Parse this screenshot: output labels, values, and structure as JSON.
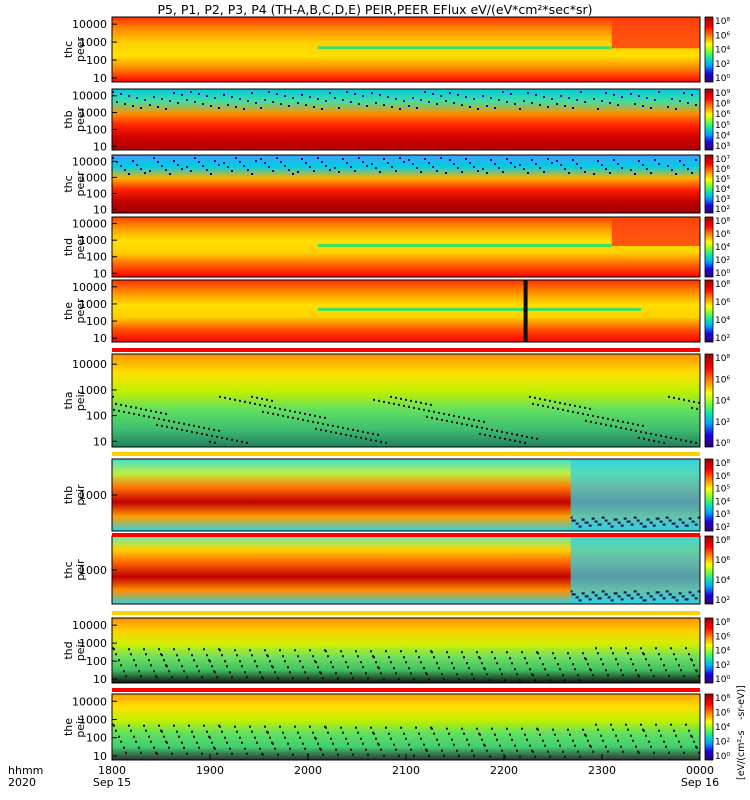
{
  "title": "P5, P1, P2, P3, P4 (TH-A,B,C,D,E) PEIR,PEER EFlux eV/(eV*cm²*sec*sr)",
  "chart_data": {
    "type": "heatmap",
    "x_time_labels": [
      "1800",
      "1900",
      "2000",
      "2100",
      "2200",
      "2300",
      "0000"
    ],
    "x_date_start": "Sep 15",
    "x_date_end": "Sep 16",
    "x_axis_row_label": "hhmm",
    "x_axis_year_label": "2020",
    "colorbar_unit_left": "[eV/(cm²-s",
    "colorbar_unit_right": "-sr-eV)]",
    "panels": [
      {
        "ylabel": "thc peer",
        "yticks": [
          "10000",
          "1000",
          "100",
          "10"
        ],
        "yscale": "log",
        "colorbar_ticks": [
          "10⁸",
          "10⁶",
          "10⁴",
          "10²",
          "10⁰"
        ]
      },
      {
        "ylabel": "thb peer",
        "yticks": [
          "10000",
          "1000",
          "100",
          "10"
        ],
        "yscale": "log",
        "colorbar_ticks": [
          "10⁹",
          "10⁸",
          "10⁶",
          "10⁵",
          "10⁴",
          "10³"
        ]
      },
      {
        "ylabel": "thc peer",
        "yticks": [
          "10000",
          "1000",
          "100",
          "10"
        ],
        "yscale": "log",
        "colorbar_ticks": [
          "10⁷",
          "10⁶",
          "10⁵",
          "10⁴",
          "10³",
          "10²"
        ]
      },
      {
        "ylabel": "thd peer",
        "yticks": [
          "10000",
          "1000",
          "100",
          "10"
        ],
        "yscale": "log",
        "colorbar_ticks": [
          "10⁸",
          "10⁶",
          "10⁴",
          "10²",
          "10⁰"
        ]
      },
      {
        "ylabel": "the peer",
        "yticks": [
          "10000",
          "1000",
          "100",
          "10"
        ],
        "yscale": "log",
        "colorbar_ticks": [
          "10⁸",
          "10⁶",
          "10⁴",
          "10²"
        ]
      },
      {
        "ylabel": "tha peir",
        "yticks": [
          "10000",
          "1000",
          "100",
          "10"
        ],
        "yscale": "log",
        "colorbar_ticks": [
          "10⁸",
          "10⁶",
          "10⁴",
          "10²",
          "10⁰"
        ]
      },
      {
        "ylabel": "thb peir",
        "yticks": [
          "1000"
        ],
        "yscale": "log",
        "colorbar_ticks": [
          "10⁸",
          "10⁶",
          "10⁵",
          "10⁴",
          "10³",
          "10²"
        ]
      },
      {
        "ylabel": "thc peir",
        "yticks": [
          "1000"
        ],
        "yscale": "log",
        "colorbar_ticks": [
          "10⁸",
          "10⁶",
          "10⁴",
          "10²"
        ]
      },
      {
        "ylabel": "thd peir",
        "yticks": [
          "10000",
          "1000",
          "100",
          "10"
        ],
        "yscale": "log",
        "colorbar_ticks": [
          "10⁸",
          "10⁶",
          "10⁴",
          "10²",
          "10⁰"
        ]
      },
      {
        "ylabel": "the peir",
        "yticks": [
          "10000",
          "1000",
          "100",
          "10"
        ],
        "yscale": "log",
        "colorbar_ticks": [
          "10⁸",
          "10⁶",
          "10⁴",
          "10²",
          "10⁰"
        ]
      }
    ]
  }
}
